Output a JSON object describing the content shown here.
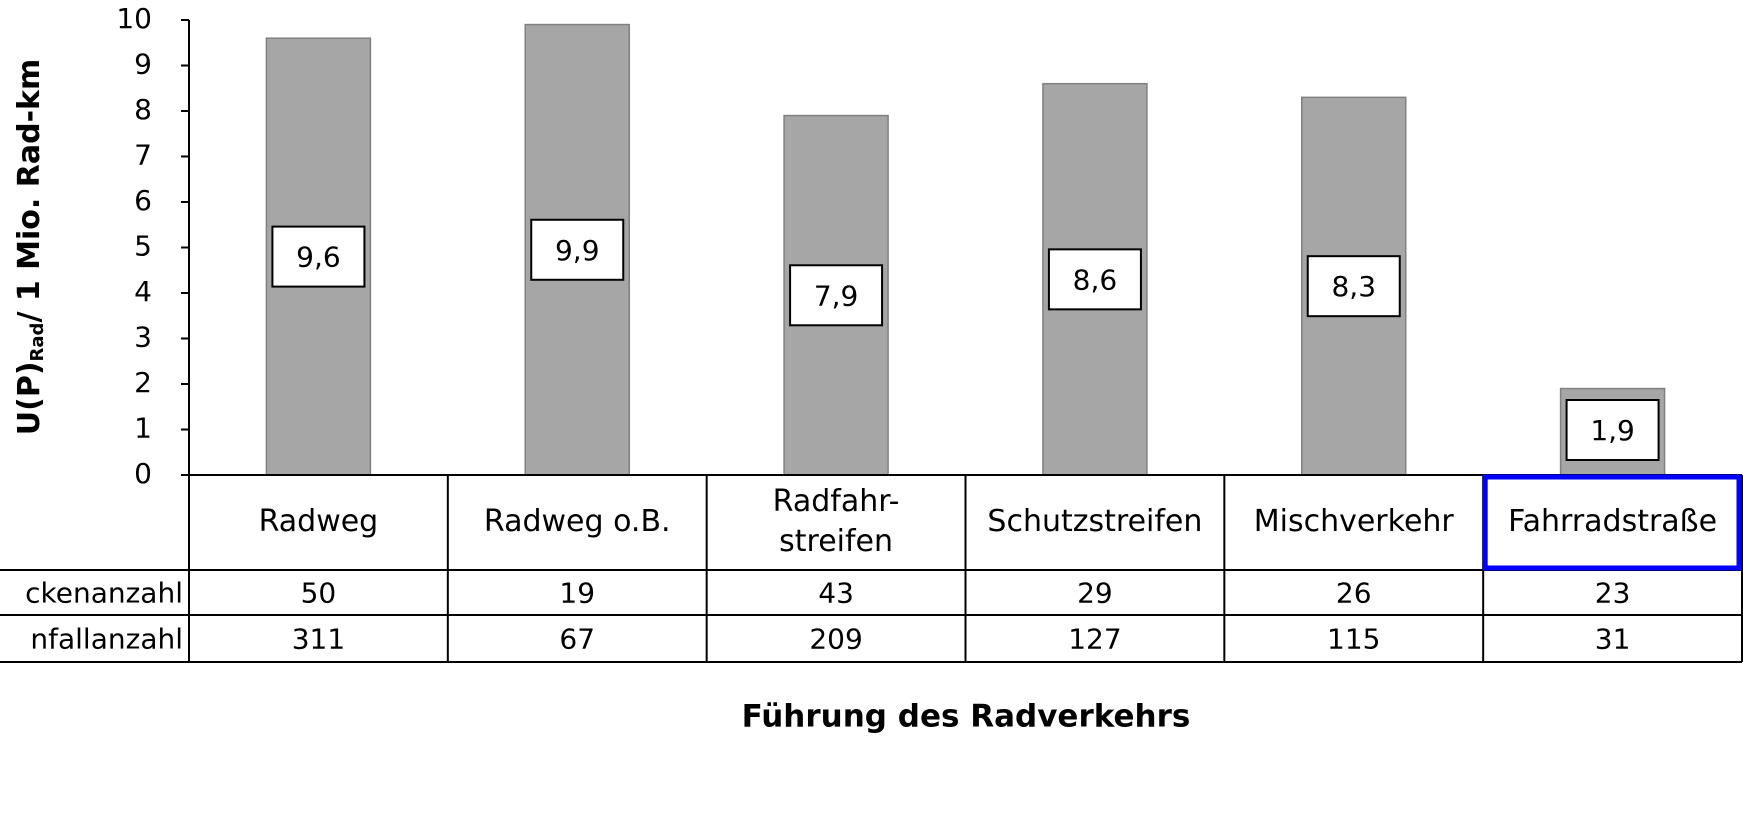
{
  "chart_data": {
    "type": "bar",
    "y_label": "U(P)",
    "y_label_sub": "Rad",
    "y_label_rest": "/ 1 Mio. Rad-km",
    "x_label": "Führung des Radverkehrs",
    "categories": [
      "Radweg",
      "Radweg o.B.",
      "Radfahr-\nstreifen",
      "Schutzstreifen",
      "Mischverkehr",
      "Fahrradstraße"
    ],
    "values": [
      9.6,
      9.9,
      7.9,
      8.6,
      8.3,
      1.9
    ],
    "value_labels": [
      "9,6",
      "9,9",
      "7,9",
      "8,6",
      "8,3",
      "1,9"
    ],
    "color": "#a6a6a6",
    "ylim": [
      0,
      10
    ],
    "yticks": [
      0,
      1,
      2,
      3,
      4,
      5,
      6,
      7,
      8,
      9,
      10
    ],
    "table": [
      {
        "label": "ckenanzahl",
        "values": [
          50,
          19,
          43,
          29,
          26,
          23
        ]
      },
      {
        "label": "nfallanzahl",
        "values": [
          311,
          67,
          209,
          127,
          115,
          31
        ]
      }
    ],
    "highlight_index": 5,
    "highlight_color": "#0000ff"
  }
}
